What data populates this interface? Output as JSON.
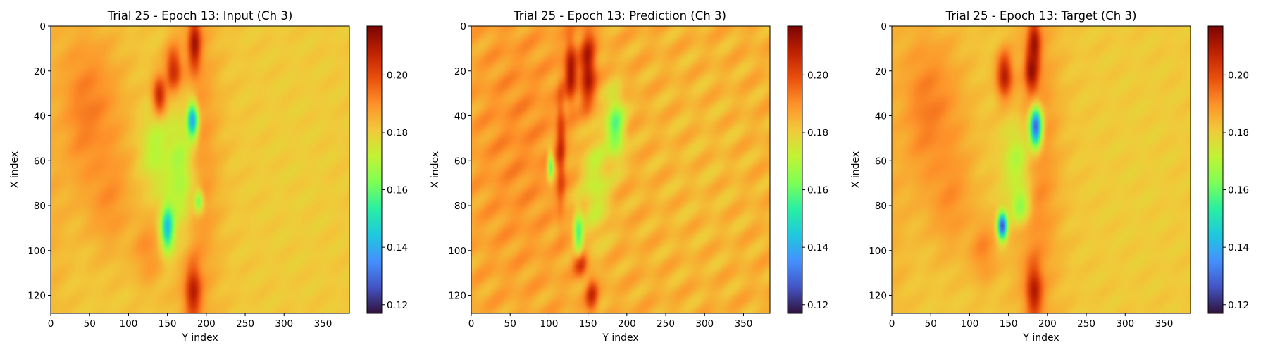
{
  "colors": {
    "colormap": "turbo",
    "stops": [
      "#30123b",
      "#4454c4",
      "#4490fe",
      "#1fc8de",
      "#29efa2",
      "#7dff56",
      "#c1f334",
      "#f1ca3a",
      "#fe922a",
      "#ea4f0d",
      "#be2102",
      "#7a0403"
    ]
  },
  "chart_data": [
    {
      "type": "heatmap",
      "title": "Trial 25 - Epoch 13: Input (Ch 3)",
      "xlabel": "Y index",
      "ylabel": "X index",
      "xlim": [
        0,
        384
      ],
      "ylim": [
        128,
        0
      ],
      "xticks": [
        0,
        50,
        100,
        150,
        200,
        250,
        300,
        350
      ],
      "yticks": [
        0,
        20,
        40,
        60,
        80,
        100,
        120
      ],
      "colorbar": {
        "vmin": 0.117,
        "vmax": 0.217,
        "ticks": [
          0.12,
          0.14,
          0.16,
          0.18,
          0.2
        ],
        "tick_labels": [
          "0.12",
          "0.14",
          "0.16",
          "0.18",
          "0.20"
        ]
      },
      "background": 0.181,
      "features": [
        {
          "x": 45,
          "y": 38,
          "sx": 45,
          "sy": 35,
          "v": 0.193
        },
        {
          "x": 75,
          "y": 75,
          "sx": 28,
          "sy": 25,
          "v": 0.19
        },
        {
          "x": 125,
          "y": 100,
          "sx": 20,
          "sy": 15,
          "v": 0.19
        },
        {
          "x": 0,
          "y": 64,
          "sx": 25,
          "sy": 70,
          "v": 0.185
        },
        {
          "x": 185,
          "y": 64,
          "sx": 30,
          "sy": 80,
          "v": 0.191
        },
        {
          "x": 158,
          "y": 20,
          "sx": 10,
          "sy": 10,
          "v": 0.21
        },
        {
          "x": 140,
          "y": 32,
          "sx": 9,
          "sy": 9,
          "v": 0.214
        },
        {
          "x": 185,
          "y": 8,
          "sx": 8,
          "sy": 12,
          "v": 0.212
        },
        {
          "x": 183,
          "y": 118,
          "sx": 10,
          "sy": 12,
          "v": 0.21
        },
        {
          "x": 135,
          "y": 55,
          "sx": 18,
          "sy": 16,
          "v": 0.17
        },
        {
          "x": 165,
          "y": 65,
          "sx": 20,
          "sy": 30,
          "v": 0.168
        },
        {
          "x": 182,
          "y": 42,
          "sx": 7,
          "sy": 8,
          "v": 0.139
        },
        {
          "x": 150,
          "y": 90,
          "sx": 8,
          "sy": 10,
          "v": 0.143
        },
        {
          "x": 190,
          "y": 78,
          "sx": 6,
          "sy": 5,
          "v": 0.162
        },
        {
          "x": 320,
          "y": 64,
          "sx": 60,
          "sy": 60,
          "v": 0.18
        }
      ]
    },
    {
      "type": "heatmap",
      "title": "Trial 25 - Epoch 13: Prediction (Ch 3)",
      "xlabel": "Y index",
      "ylabel": "X index",
      "xlim": [
        0,
        384
      ],
      "ylim": [
        128,
        0
      ],
      "xticks": [
        0,
        50,
        100,
        150,
        200,
        250,
        300,
        350
      ],
      "yticks": [
        0,
        20,
        40,
        60,
        80,
        100,
        120
      ],
      "colorbar": {
        "vmin": 0.117,
        "vmax": 0.217,
        "ticks": [
          0.12,
          0.14,
          0.16,
          0.18,
          0.2
        ],
        "tick_labels": [
          "0.12",
          "0.14",
          "0.16",
          "0.18",
          "0.20"
        ]
      },
      "background": 0.185,
      "features": [
        {
          "x": 60,
          "y": 50,
          "sx": 60,
          "sy": 60,
          "v": 0.19
        },
        {
          "x": 128,
          "y": 20,
          "sx": 8,
          "sy": 14,
          "v": 0.212
        },
        {
          "x": 150,
          "y": 20,
          "sx": 10,
          "sy": 18,
          "v": 0.214
        },
        {
          "x": 115,
          "y": 55,
          "sx": 6,
          "sy": 25,
          "v": 0.205
        },
        {
          "x": 140,
          "y": 105,
          "sx": 8,
          "sy": 6,
          "v": 0.21
        },
        {
          "x": 155,
          "y": 120,
          "sx": 8,
          "sy": 8,
          "v": 0.205
        },
        {
          "x": 185,
          "y": 45,
          "sx": 12,
          "sy": 14,
          "v": 0.155
        },
        {
          "x": 102,
          "y": 62,
          "sx": 4,
          "sy": 6,
          "v": 0.158
        },
        {
          "x": 138,
          "y": 92,
          "sx": 6,
          "sy": 10,
          "v": 0.155
        },
        {
          "x": 160,
          "y": 70,
          "sx": 18,
          "sy": 25,
          "v": 0.172
        },
        {
          "x": 300,
          "y": 64,
          "sx": 80,
          "sy": 60,
          "v": 0.183
        }
      ]
    },
    {
      "type": "heatmap",
      "title": "Trial 25 - Epoch 13: Target (Ch 3)",
      "xlabel": "Y index",
      "ylabel": "X index",
      "xlim": [
        0,
        384
      ],
      "ylim": [
        128,
        0
      ],
      "xticks": [
        0,
        50,
        100,
        150,
        200,
        250,
        300,
        350
      ],
      "yticks": [
        0,
        20,
        40,
        60,
        80,
        100,
        120
      ],
      "colorbar": {
        "vmin": 0.117,
        "vmax": 0.217,
        "ticks": [
          0.12,
          0.14,
          0.16,
          0.18,
          0.2
        ],
        "tick_labels": [
          "0.12",
          "0.14",
          "0.16",
          "0.18",
          "0.20"
        ]
      },
      "background": 0.181,
      "features": [
        {
          "x": 45,
          "y": 38,
          "sx": 45,
          "sy": 35,
          "v": 0.193
        },
        {
          "x": 75,
          "y": 75,
          "sx": 28,
          "sy": 25,
          "v": 0.19
        },
        {
          "x": 118,
          "y": 100,
          "sx": 18,
          "sy": 14,
          "v": 0.191
        },
        {
          "x": 0,
          "y": 64,
          "sx": 25,
          "sy": 70,
          "v": 0.185
        },
        {
          "x": 185,
          "y": 64,
          "sx": 30,
          "sy": 80,
          "v": 0.191
        },
        {
          "x": 145,
          "y": 22,
          "sx": 10,
          "sy": 10,
          "v": 0.21
        },
        {
          "x": 180,
          "y": 20,
          "sx": 8,
          "sy": 10,
          "v": 0.214
        },
        {
          "x": 183,
          "y": 8,
          "sx": 8,
          "sy": 12,
          "v": 0.212
        },
        {
          "x": 183,
          "y": 118,
          "sx": 10,
          "sy": 12,
          "v": 0.21
        },
        {
          "x": 160,
          "y": 60,
          "sx": 18,
          "sy": 18,
          "v": 0.17
        },
        {
          "x": 185,
          "y": 45,
          "sx": 8,
          "sy": 9,
          "v": 0.128
        },
        {
          "x": 142,
          "y": 89,
          "sx": 6,
          "sy": 6,
          "v": 0.125
        },
        {
          "x": 165,
          "y": 80,
          "sx": 12,
          "sy": 8,
          "v": 0.165
        },
        {
          "x": 320,
          "y": 64,
          "sx": 60,
          "sy": 60,
          "v": 0.18
        }
      ]
    }
  ]
}
